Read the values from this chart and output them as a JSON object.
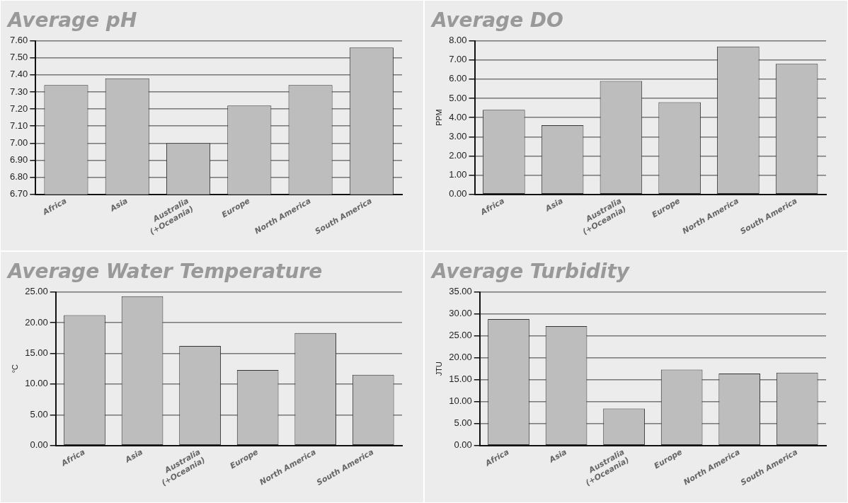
{
  "chart_data": [
    {
      "type": "bar",
      "title": "Average pH",
      "categories": [
        "Africa",
        "Asia",
        "Australia (+Oceania)",
        "Europe",
        "North America",
        "South America"
      ],
      "values": [
        7.34,
        7.38,
        7.0,
        7.22,
        7.34,
        7.56
      ],
      "color": "#bdbdbd",
      "ylim": [
        6.7,
        7.6
      ],
      "yticks": [
        {
          "value": 6.7,
          "label": "6.70"
        },
        {
          "value": 6.8,
          "label": "6.80"
        },
        {
          "value": 6.9,
          "label": "6.90"
        },
        {
          "value": 7.0,
          "label": "7.00"
        },
        {
          "value": 7.1,
          "label": "7.10"
        },
        {
          "value": 7.2,
          "label": "7.20"
        },
        {
          "value": 7.3,
          "label": "7.30"
        },
        {
          "value": 7.4,
          "label": "7.40"
        },
        {
          "value": 7.5,
          "label": "7.50"
        },
        {
          "value": 7.6,
          "label": "7.60"
        }
      ],
      "grid": "y",
      "legend": false
    },
    {
      "type": "bar",
      "title": "Average DO",
      "ylabel": "PPM",
      "categories": [
        "Africa",
        "Asia",
        "Australia (+Oceania)",
        "Europe",
        "North America",
        "South America"
      ],
      "values": [
        4.4,
        3.6,
        5.9,
        4.8,
        7.7,
        6.8
      ],
      "color": "#bdbdbd",
      "ylim": [
        0,
        8
      ],
      "yticks": [
        {
          "value": 0,
          "label": "0.00"
        },
        {
          "value": 1,
          "label": "1.00"
        },
        {
          "value": 2,
          "label": "2.00"
        },
        {
          "value": 3,
          "label": "3.00"
        },
        {
          "value": 4,
          "label": "4.00"
        },
        {
          "value": 5,
          "label": "5.00"
        },
        {
          "value": 6,
          "label": "6.00"
        },
        {
          "value": 7,
          "label": "7.00"
        },
        {
          "value": 8,
          "label": "8.00"
        }
      ],
      "grid": "y",
      "legend": false
    },
    {
      "type": "bar",
      "title": "Average Water Temperature",
      "ylabel": "°C",
      "categories": [
        "Africa",
        "Asia",
        "Australia (+Oceania)",
        "Europe",
        "North America",
        "South America"
      ],
      "values": [
        21.2,
        24.3,
        16.2,
        12.3,
        18.3,
        11.5
      ],
      "color": "#bdbdbd",
      "ylim": [
        0,
        25
      ],
      "yticks": [
        {
          "value": 0,
          "label": "0.00"
        },
        {
          "value": 5,
          "label": "5.00"
        },
        {
          "value": 10,
          "label": "10.00"
        },
        {
          "value": 15,
          "label": "15.00"
        },
        {
          "value": 20,
          "label": "20.00"
        },
        {
          "value": 25,
          "label": "25.00"
        }
      ],
      "grid": "y",
      "legend": false
    },
    {
      "type": "bar",
      "title": "Average Turbidity",
      "ylabel": "JTU",
      "categories": [
        "Africa",
        "Asia",
        "Australia (+Oceania)",
        "Europe",
        "North America",
        "South America"
      ],
      "values": [
        28.8,
        27.2,
        8.4,
        17.3,
        16.4,
        16.6
      ],
      "color": "#bdbdbd",
      "ylim": [
        0,
        35
      ],
      "yticks": [
        {
          "value": 0,
          "label": "0.00"
        },
        {
          "value": 5,
          "label": "5.00"
        },
        {
          "value": 10,
          "label": "10.00"
        },
        {
          "value": 15,
          "label": "15.00"
        },
        {
          "value": 20,
          "label": "20.00"
        },
        {
          "value": 25,
          "label": "25.00"
        },
        {
          "value": 30,
          "label": "30.00"
        },
        {
          "value": 35,
          "label": "35.00"
        }
      ],
      "grid": "y",
      "legend": false
    }
  ]
}
